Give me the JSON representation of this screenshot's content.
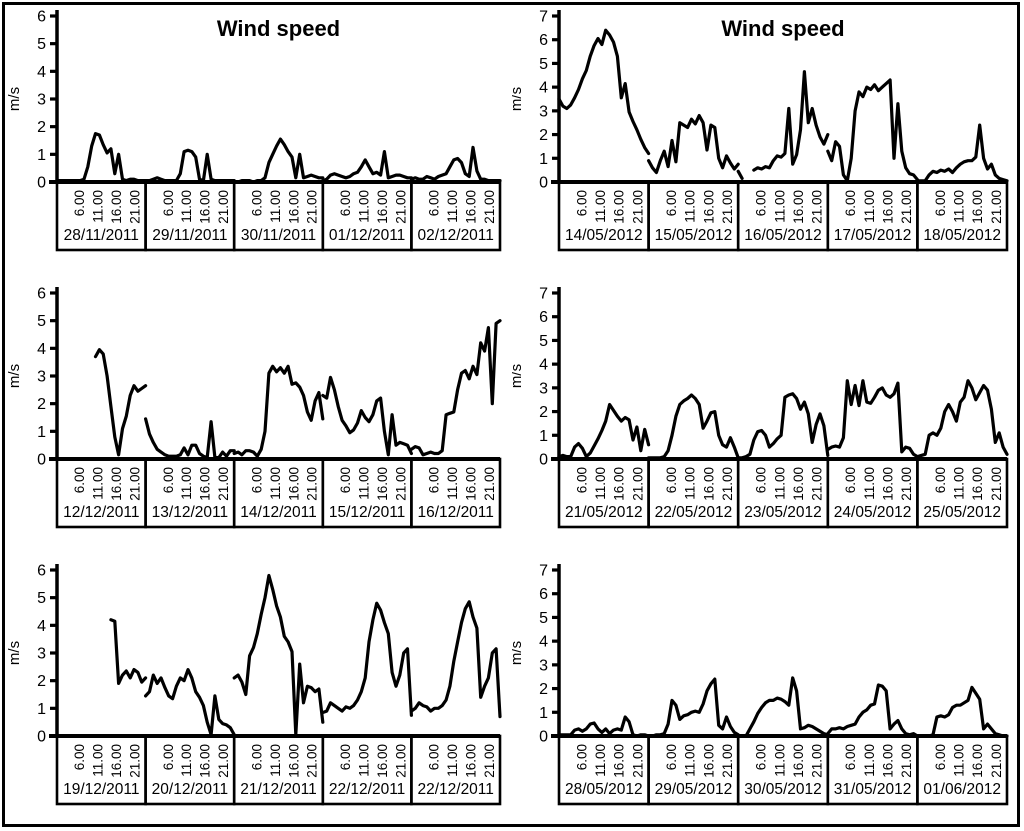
{
  "figure": {
    "background": "#ffffff",
    "line_color": "#000000",
    "border_color": "#000000"
  },
  "chart_data": [
    {
      "type": "line",
      "panel": "top-left",
      "title": "Wind speed",
      "xlabel": "",
      "ylabel": "m/s",
      "ylim": [
        0,
        6
      ],
      "yticks": [
        0,
        1,
        2,
        3,
        4,
        5,
        6
      ],
      "x_tick_labels": [
        "6.00",
        "11.00",
        "16.00",
        "21.00"
      ],
      "x_tick_hours": [
        6,
        11,
        16,
        21
      ],
      "grid": false,
      "legend": false,
      "sample_unit": "hour",
      "days": [
        {
          "date": "28/11/2011",
          "values": [
            0.05,
            0.05,
            0.05,
            0.05,
            0.05,
            0.05,
            0.05,
            0.1,
            0.55,
            1.3,
            1.75,
            1.7,
            1.35,
            1.05,
            1.2,
            0.3,
            1.0,
            0.1,
            0.05,
            0.1,
            0.1,
            0.05,
            0.05,
            0.05
          ]
        },
        {
          "date": "29/11/2011",
          "values": [
            0.05,
            0.05,
            0.1,
            0.15,
            0.1,
            0.05,
            0.05,
            0.05,
            0.05,
            0.3,
            1.1,
            1.15,
            1.1,
            0.9,
            0.1,
            0.05,
            1.0,
            0.1,
            0.05,
            0.05,
            0.05,
            0.05,
            0.05,
            0.05
          ]
        },
        {
          "date": "30/11/2011",
          "values": [
            0.0,
            0.0,
            0.05,
            0.05,
            0.05,
            0.0,
            0.05,
            0.05,
            0.15,
            0.7,
            1.0,
            1.3,
            1.55,
            1.35,
            1.1,
            0.9,
            0.15,
            1.0,
            0.15,
            0.2,
            0.25,
            0.2,
            0.15,
            0.15
          ]
        },
        {
          "date": "01/12/2011",
          "values": [
            0.05,
            0.1,
            0.25,
            0.3,
            0.25,
            0.2,
            0.15,
            0.2,
            0.3,
            0.35,
            0.55,
            0.8,
            0.55,
            0.3,
            0.35,
            0.25,
            1.1,
            0.15,
            0.2,
            0.25,
            0.25,
            0.2,
            0.15,
            0.15
          ]
        },
        {
          "date": "02/12/2011",
          "values": [
            0.1,
            0.15,
            0.1,
            0.1,
            0.2,
            0.15,
            0.1,
            0.2,
            0.25,
            0.3,
            0.55,
            0.8,
            0.85,
            0.7,
            0.3,
            0.2,
            1.25,
            0.4,
            0.1,
            0.1,
            0.05,
            0.05,
            0.05,
            0.05
          ]
        }
      ]
    },
    {
      "type": "line",
      "panel": "top-right",
      "title": "Wind speed",
      "xlabel": "",
      "ylabel": "m/s",
      "ylim": [
        0,
        7
      ],
      "yticks": [
        0,
        1,
        2,
        3,
        4,
        5,
        6,
        7
      ],
      "x_tick_labels": [
        "6.00",
        "11.00",
        "16.00",
        "21.00"
      ],
      "x_tick_hours": [
        6,
        11,
        16,
        21
      ],
      "grid": false,
      "legend": false,
      "sample_unit": "hour",
      "days": [
        {
          "date": "14/05/2012",
          "values": [
            3.5,
            3.2,
            3.1,
            3.25,
            3.55,
            3.9,
            4.35,
            4.7,
            5.3,
            5.75,
            6.05,
            5.8,
            6.4,
            6.2,
            5.9,
            5.3,
            3.55,
            4.15,
            2.95,
            2.55,
            2.2,
            1.8,
            1.45,
            1.2
          ]
        },
        {
          "date": "15/05/2012",
          "values": [
            0.9,
            0.6,
            0.4,
            0.9,
            1.3,
            0.65,
            1.75,
            0.85,
            2.5,
            2.4,
            2.3,
            2.65,
            2.45,
            2.8,
            2.5,
            1.35,
            2.4,
            2.3,
            1.0,
            0.6,
            1.1,
            0.8,
            0.55,
            0.75
          ]
        },
        {
          "date": "16/05/2012",
          "values": [
            0.45,
            0.15,
            null,
            null,
            0.5,
            0.6,
            0.55,
            0.65,
            0.6,
            0.9,
            1.1,
            1.05,
            1.2,
            3.1,
            0.75,
            1.15,
            2.2,
            4.65,
            2.5,
            3.1,
            2.4,
            1.9,
            1.6,
            2.0
          ]
        },
        {
          "date": "17/05/2012",
          "values": [
            1.3,
            0.9,
            1.7,
            1.5,
            0.3,
            0.05,
            1.0,
            3.0,
            3.8,
            3.6,
            4.0,
            3.9,
            4.1,
            3.85,
            4.0,
            4.15,
            4.3,
            1.0,
            3.3,
            1.3,
            0.6,
            0.35,
            0.3,
            0.1
          ]
        },
        {
          "date": "18/05/2012",
          "values": [
            0.05,
            0.05,
            0.05,
            0.3,
            0.45,
            0.4,
            0.5,
            0.45,
            0.55,
            0.4,
            0.6,
            0.75,
            0.85,
            0.9,
            0.9,
            1.05,
            2.4,
            1.0,
            0.55,
            0.75,
            0.3,
            0.15,
            0.1,
            0.05
          ]
        }
      ]
    },
    {
      "type": "line",
      "panel": "middle-left",
      "title": "",
      "xlabel": "",
      "ylabel": "m/s",
      "ylim": [
        0,
        6
      ],
      "yticks": [
        0,
        1,
        2,
        3,
        4,
        5,
        6
      ],
      "x_tick_labels": [
        "6.00",
        "11.00",
        "16.00",
        "21.00"
      ],
      "x_tick_hours": [
        6,
        11,
        16,
        21
      ],
      "grid": false,
      "legend": false,
      "sample_unit": "hour",
      "days": [
        {
          "date": "12/12/2011",
          "values": [
            null,
            null,
            null,
            null,
            null,
            null,
            null,
            null,
            null,
            null,
            3.7,
            3.95,
            3.8,
            3.0,
            1.9,
            0.8,
            0.15,
            1.1,
            1.55,
            2.3,
            2.65,
            2.45,
            2.55,
            2.65
          ]
        },
        {
          "date": "13/12/2011",
          "values": [
            1.45,
            0.9,
            0.6,
            0.35,
            0.25,
            0.15,
            0.1,
            0.1,
            0.1,
            0.15,
            0.4,
            0.15,
            0.5,
            0.5,
            0.2,
            0.1,
            0.05,
            1.35,
            0.05,
            0.05,
            0.25,
            0.1,
            0.3,
            0.3
          ]
        },
        {
          "date": "14/12/2011",
          "values": [
            0.2,
            0.25,
            0.15,
            0.3,
            0.3,
            0.25,
            0.1,
            0.35,
            1.0,
            3.1,
            3.35,
            3.15,
            3.3,
            3.1,
            3.35,
            2.7,
            2.75,
            2.6,
            2.3,
            1.7,
            1.4,
            2.1,
            2.4,
            1.45
          ]
        },
        {
          "date": "15/12/2011",
          "values": [
            2.3,
            2.2,
            2.95,
            2.5,
            1.9,
            1.4,
            1.2,
            0.95,
            1.05,
            1.3,
            1.75,
            1.5,
            1.35,
            1.6,
            2.1,
            2.2,
            1.0,
            0.15,
            1.6,
            0.5,
            0.6,
            0.55,
            0.5,
            0.2
          ]
        },
        {
          "date": "16/12/2011",
          "values": [
            0.35,
            0.45,
            0.4,
            0.15,
            0.2,
            0.25,
            0.2,
            0.2,
            0.3,
            1.6,
            1.65,
            1.7,
            2.5,
            3.1,
            3.2,
            2.9,
            3.35,
            3.05,
            4.2,
            3.9,
            4.75,
            2.0,
            4.9,
            5.0
          ]
        }
      ]
    },
    {
      "type": "line",
      "panel": "middle-right",
      "title": "",
      "xlabel": "",
      "ylabel": "m/s",
      "ylim": [
        0,
        7
      ],
      "yticks": [
        0,
        1,
        2,
        3,
        4,
        5,
        6,
        7
      ],
      "x_tick_labels": [
        "6.00",
        "11.00",
        "16.00",
        "21.00"
      ],
      "x_tick_hours": [
        6,
        11,
        16,
        21
      ],
      "grid": false,
      "legend": false,
      "sample_unit": "hour",
      "days": [
        {
          "date": "21/05/2012",
          "values": [
            0.1,
            0.15,
            0.1,
            0.1,
            0.5,
            0.65,
            0.45,
            0.1,
            0.25,
            0.55,
            0.85,
            1.2,
            1.6,
            2.3,
            2.05,
            1.8,
            1.6,
            1.75,
            1.65,
            0.8,
            1.35,
            0.35,
            1.25,
            0.6
          ]
        },
        {
          "date": "22/05/2012",
          "values": [
            0.05,
            0.05,
            0.05,
            0.05,
            0.1,
            0.35,
            1.0,
            1.8,
            2.3,
            2.45,
            2.55,
            2.7,
            2.55,
            2.3,
            1.3,
            1.6,
            1.95,
            2.0,
            1.0,
            0.6,
            0.5,
            0.9,
            0.5,
            0.05
          ]
        },
        {
          "date": "23/05/2012",
          "values": [
            0.05,
            0.05,
            0.1,
            0.2,
            0.8,
            1.15,
            1.2,
            1.0,
            0.5,
            0.65,
            0.85,
            1.0,
            2.6,
            2.7,
            2.75,
            2.55,
            2.1,
            2.4,
            1.9,
            0.7,
            1.45,
            1.9,
            1.4,
            0.15
          ]
        },
        {
          "date": "24/05/2012",
          "values": [
            0.4,
            0.5,
            0.55,
            0.5,
            0.9,
            3.3,
            2.3,
            3.1,
            2.25,
            3.3,
            2.4,
            2.35,
            2.6,
            2.9,
            3.0,
            2.7,
            2.6,
            2.75,
            3.2,
            0.3,
            0.5,
            0.45,
            0.2,
            0.1
          ]
        },
        {
          "date": "25/05/2012",
          "values": [
            0.1,
            0.15,
            0.2,
            1.0,
            1.1,
            1.0,
            1.3,
            2.0,
            2.3,
            2.0,
            1.6,
            2.4,
            2.6,
            3.3,
            3.0,
            2.5,
            2.8,
            3.1,
            2.9,
            2.1,
            0.7,
            1.1,
            0.5,
            0.2
          ]
        }
      ]
    },
    {
      "type": "line",
      "panel": "bottom-left",
      "title": "",
      "xlabel": "",
      "ylabel": "m/s",
      "ylim": [
        0,
        6
      ],
      "yticks": [
        0,
        1,
        2,
        3,
        4,
        5,
        6
      ],
      "x_tick_labels": [
        "6.00",
        "11.00",
        "16.00",
        "21.00"
      ],
      "x_tick_hours": [
        6,
        11,
        16,
        21
      ],
      "grid": false,
      "legend": false,
      "sample_unit": "hour",
      "days": [
        {
          "date": "19/12/2011",
          "values": [
            null,
            null,
            null,
            null,
            null,
            null,
            null,
            null,
            null,
            null,
            null,
            null,
            null,
            null,
            4.2,
            4.15,
            1.9,
            2.2,
            2.35,
            2.1,
            2.4,
            2.3,
            1.95,
            2.1
          ]
        },
        {
          "date": "20/12/2011",
          "values": [
            1.45,
            1.6,
            2.2,
            1.9,
            2.1,
            1.75,
            1.45,
            1.35,
            1.8,
            2.1,
            2.0,
            2.4,
            2.1,
            1.6,
            1.4,
            1.1,
            0.5,
            0.05,
            1.45,
            0.6,
            0.45,
            0.4,
            0.3,
            0.05
          ]
        },
        {
          "date": "21/12/2011",
          "values": [
            2.1,
            2.2,
            1.95,
            1.5,
            2.9,
            3.2,
            3.7,
            4.4,
            5.0,
            5.8,
            5.3,
            4.7,
            4.3,
            3.6,
            3.4,
            3.05,
            0.05,
            2.6,
            1.2,
            1.8,
            1.75,
            1.6,
            1.7,
            0.5
          ]
        },
        {
          "date": "22/12/2011",
          "values": [
            0.85,
            0.9,
            1.2,
            1.1,
            1.0,
            0.9,
            1.05,
            1.0,
            1.1,
            1.3,
            1.6,
            2.1,
            3.4,
            4.2,
            4.8,
            4.55,
            4.1,
            3.7,
            2.3,
            1.8,
            2.2,
            3.0,
            3.15,
            0.75
          ]
        },
        {
          "date": "22/12/2011",
          "values": [
            0.9,
            1.0,
            1.2,
            1.1,
            1.05,
            0.9,
            1.0,
            1.0,
            1.1,
            1.3,
            1.8,
            2.7,
            3.4,
            4.1,
            4.6,
            4.85,
            4.3,
            3.9,
            1.4,
            1.8,
            2.1,
            3.0,
            3.15,
            0.7
          ]
        }
      ]
    },
    {
      "type": "line",
      "panel": "bottom-right",
      "title": "",
      "xlabel": "",
      "ylabel": "m/s",
      "ylim": [
        0,
        7
      ],
      "yticks": [
        0,
        1,
        2,
        3,
        4,
        5,
        6,
        7
      ],
      "x_tick_labels": [
        "6.00",
        "11.00",
        "16.00",
        "21.00"
      ],
      "x_tick_hours": [
        6,
        11,
        16,
        21
      ],
      "grid": false,
      "legend": false,
      "sample_unit": "hour",
      "days": [
        {
          "date": "28/05/2012",
          "values": [
            0.05,
            0.05,
            0.05,
            0.05,
            0.25,
            0.3,
            0.2,
            0.3,
            0.5,
            0.55,
            0.3,
            0.15,
            0.3,
            0.1,
            0.25,
            0.3,
            0.25,
            0.8,
            0.6,
            0.05,
            0.0,
            0.05,
            0.05,
            0.0
          ]
        },
        {
          "date": "29/05/2012",
          "values": [
            0.0,
            0.0,
            0.05,
            0.05,
            0.1,
            0.5,
            1.5,
            1.3,
            0.7,
            0.85,
            0.9,
            1.0,
            1.05,
            1.0,
            1.35,
            1.9,
            2.2,
            2.4,
            0.45,
            0.3,
            0.8,
            0.4,
            0.15,
            0.05
          ]
        },
        {
          "date": "30/05/2012",
          "values": [
            0.0,
            0.0,
            0.0,
            0.3,
            0.6,
            0.95,
            1.2,
            1.4,
            1.5,
            1.5,
            1.6,
            1.55,
            1.45,
            1.3,
            2.45,
            1.9,
            0.3,
            0.35,
            0.45,
            0.4,
            0.3,
            0.2,
            0.1,
            0.05
          ]
        },
        {
          "date": "31/05/2012",
          "values": [
            0.1,
            0.3,
            0.3,
            0.35,
            0.3,
            0.4,
            0.45,
            0.5,
            0.8,
            1.0,
            1.1,
            1.3,
            1.35,
            2.15,
            2.1,
            1.9,
            0.3,
            0.5,
            0.65,
            0.3,
            0.1,
            0.05,
            0.1,
            0.0
          ]
        },
        {
          "date": "01/06/2012",
          "values": [
            0.0,
            0.0,
            0.0,
            0.0,
            0.05,
            0.8,
            0.85,
            0.8,
            0.9,
            1.2,
            1.3,
            1.3,
            1.4,
            1.5,
            2.05,
            1.8,
            1.55,
            0.3,
            0.5,
            0.3,
            0.1,
            0.05,
            0.0,
            0.0
          ]
        }
      ]
    }
  ]
}
